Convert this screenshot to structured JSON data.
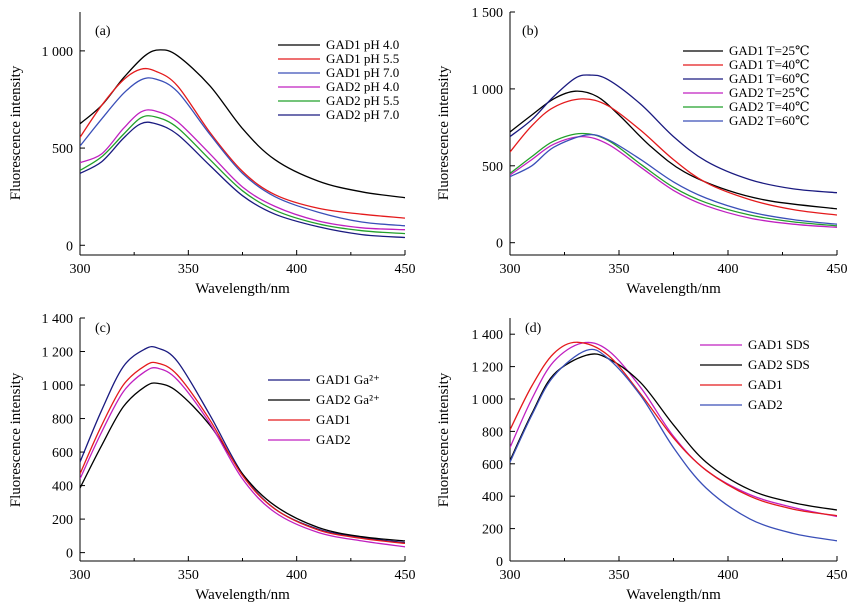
{
  "chart_data": [
    {
      "type": "line",
      "panel_label": "(a)",
      "xlabel": "Wavelength/nm",
      "ylabel": "Fluorescence intensity",
      "xlim": [
        300,
        450
      ],
      "ylim": [
        -50,
        1200
      ],
      "xticks": [
        300,
        350,
        400,
        450
      ],
      "xtick_labels": [
        "300",
        "350",
        "400",
        "450"
      ],
      "yticks": [
        0,
        500,
        1000
      ],
      "ytick_labels": [
        "0",
        "500",
        "1 000"
      ],
      "grid": false,
      "legend": "top-right",
      "series": [
        {
          "name": "GAD1 pH 4.0",
          "color": "#000000",
          "x": [
            300,
            310,
            320,
            330,
            337,
            345,
            360,
            375,
            390,
            410,
            430,
            450
          ],
          "y": [
            625,
            720,
            860,
            975,
            1005,
            975,
            820,
            600,
            440,
            330,
            275,
            245
          ]
        },
        {
          "name": "GAD1 pH 5.5",
          "color": "#e41a1c",
          "x": [
            300,
            310,
            320,
            328,
            335,
            345,
            360,
            375,
            390,
            410,
            430,
            450
          ],
          "y": [
            555,
            720,
            850,
            905,
            895,
            820,
            580,
            380,
            260,
            190,
            160,
            140
          ]
        },
        {
          "name": "GAD1 pH 7.0",
          "color": "#3a4fb8",
          "x": [
            300,
            310,
            320,
            328,
            335,
            345,
            360,
            375,
            390,
            410,
            430,
            450
          ],
          "y": [
            510,
            650,
            780,
            850,
            855,
            790,
            570,
            370,
            250,
            170,
            120,
            100
          ]
        },
        {
          "name": "GAD2 pH 4.0",
          "color": "#c020c0",
          "x": [
            300,
            310,
            320,
            328,
            335,
            345,
            360,
            375,
            390,
            410,
            430,
            450
          ],
          "y": [
            425,
            470,
            600,
            685,
            690,
            635,
            470,
            300,
            200,
            125,
            90,
            80
          ]
        },
        {
          "name": "GAD2 pH 5.5",
          "color": "#22a02a",
          "x": [
            300,
            310,
            320,
            328,
            335,
            345,
            360,
            375,
            390,
            410,
            430,
            450
          ],
          "y": [
            385,
            455,
            570,
            655,
            660,
            605,
            440,
            280,
            180,
            110,
            75,
            60
          ]
        },
        {
          "name": "GAD2 pH 7.0",
          "color": "#1a1a80",
          "x": [
            300,
            310,
            320,
            328,
            335,
            345,
            360,
            375,
            390,
            410,
            430,
            450
          ],
          "y": [
            370,
            430,
            550,
            625,
            625,
            570,
            410,
            255,
            160,
            95,
            55,
            40
          ]
        }
      ]
    },
    {
      "type": "line",
      "panel_label": "(b)",
      "xlabel": "Wavelength/nm",
      "ylabel": "Fluorescence intensity",
      "xlim": [
        300,
        450
      ],
      "ylim": [
        -80,
        1500
      ],
      "xticks": [
        300,
        350,
        400,
        450
      ],
      "xtick_labels": [
        "300",
        "350",
        "400",
        "450"
      ],
      "yticks": [
        0,
        500,
        1000,
        1500
      ],
      "ytick_labels": [
        "0",
        "500",
        "1 000",
        "1 500"
      ],
      "grid": false,
      "legend": "top-right",
      "series": [
        {
          "name": "GAD1 T=25℃",
          "color": "#000000",
          "x": [
            300,
            310,
            320,
            330,
            340,
            350,
            365,
            380,
            400,
            420,
            450
          ],
          "y": [
            720,
            830,
            935,
            985,
            950,
            830,
            620,
            460,
            340,
            270,
            220
          ]
        },
        {
          "name": "GAD1 T=40℃",
          "color": "#e41a1c",
          "x": [
            300,
            310,
            320,
            333,
            345,
            360,
            375,
            390,
            410,
            430,
            450
          ],
          "y": [
            590,
            760,
            880,
            935,
            890,
            730,
            540,
            390,
            280,
            215,
            180
          ]
        },
        {
          "name": "GAD1 T=60℃",
          "color": "#1a1a80",
          "x": [
            300,
            310,
            320,
            330,
            337,
            345,
            360,
            375,
            390,
            410,
            430,
            450
          ],
          "y": [
            690,
            800,
            950,
            1070,
            1090,
            1060,
            900,
            690,
            530,
            410,
            350,
            325
          ]
        },
        {
          "name": "GAD2 T=25℃",
          "color": "#c020c0",
          "x": [
            300,
            310,
            320,
            333,
            345,
            360,
            375,
            390,
            410,
            430,
            450
          ],
          "y": [
            440,
            540,
            640,
            690,
            640,
            490,
            340,
            240,
            160,
            120,
            100
          ]
        },
        {
          "name": "GAD2 T=40℃",
          "color": "#22a02a",
          "x": [
            300,
            310,
            320,
            333,
            345,
            360,
            375,
            390,
            410,
            430,
            450
          ],
          "y": [
            450,
            560,
            660,
            710,
            665,
            510,
            360,
            260,
            180,
            135,
            110
          ]
        },
        {
          "name": "GAD2 T=60℃",
          "color": "#3a4fb8",
          "x": [
            300,
            310,
            320,
            335,
            345,
            360,
            375,
            390,
            410,
            430,
            450
          ],
          "y": [
            430,
            500,
            620,
            700,
            670,
            540,
            395,
            290,
            200,
            150,
            120
          ]
        }
      ]
    },
    {
      "type": "line",
      "panel_label": "(c)",
      "xlabel": "Wavelength/nm",
      "ylabel": "Fluorescence intensity",
      "xlim": [
        300,
        450
      ],
      "ylim": [
        -50,
        1400
      ],
      "xticks": [
        300,
        350,
        400,
        450
      ],
      "xtick_labels": [
        "300",
        "350",
        "400",
        "450"
      ],
      "yticks": [
        0,
        200,
        400,
        600,
        800,
        1000,
        1200,
        1400
      ],
      "ytick_labels": [
        "0",
        "200",
        "400",
        "600",
        "800",
        "1 000",
        "1 200",
        "1 400"
      ],
      "grid": false,
      "legend": "middle-right",
      "series": [
        {
          "name": "GAD1 Ga²⁺",
          "color": "#1a1a80",
          "x": [
            300,
            310,
            320,
            330,
            336,
            345,
            360,
            375,
            390,
            410,
            430,
            450
          ],
          "y": [
            540,
            850,
            1110,
            1215,
            1220,
            1140,
            820,
            470,
            260,
            140,
            90,
            60
          ]
        },
        {
          "name": "GAD2 Ga²⁺",
          "color": "#000000",
          "x": [
            300,
            310,
            320,
            330,
            336,
            345,
            360,
            375,
            390,
            410,
            430,
            450
          ],
          "y": [
            385,
            640,
            870,
            990,
            1010,
            960,
            760,
            470,
            280,
            150,
            95,
            70
          ]
        },
        {
          "name": "GAD1",
          "color": "#e41a1c",
          "x": [
            300,
            310,
            320,
            330,
            336,
            345,
            360,
            375,
            390,
            410,
            430,
            450
          ],
          "y": [
            470,
            760,
            1000,
            1115,
            1130,
            1060,
            790,
            460,
            260,
            135,
            85,
            55
          ]
        },
        {
          "name": "GAD2",
          "color": "#c020c0",
          "x": [
            300,
            310,
            320,
            330,
            336,
            345,
            360,
            375,
            390,
            410,
            430,
            450
          ],
          "y": [
            440,
            720,
            960,
            1080,
            1100,
            1030,
            770,
            440,
            240,
            120,
            70,
            35
          ]
        }
      ]
    },
    {
      "type": "line",
      "panel_label": "(d)",
      "xlabel": "Wavelength/nm",
      "ylabel": "Fluorescence intensity",
      "xlim": [
        300,
        450
      ],
      "ylim": [
        0,
        1500
      ],
      "xticks": [
        300,
        350,
        400,
        450
      ],
      "xtick_labels": [
        "300",
        "350",
        "400",
        "450"
      ],
      "yticks": [
        0,
        200,
        400,
        600,
        800,
        1000,
        1200,
        1400
      ],
      "ytick_labels": [
        "0",
        "200",
        "400",
        "600",
        "800",
        "1 000",
        "1 200",
        "1 400"
      ],
      "grid": false,
      "legend": "top-right",
      "series": [
        {
          "name": "GAD1 SDS",
          "color": "#c020c0",
          "x": [
            300,
            310,
            320,
            333,
            345,
            360,
            375,
            390,
            410,
            430,
            450
          ],
          "y": [
            700,
            1000,
            1230,
            1345,
            1300,
            1070,
            770,
            560,
            410,
            330,
            275
          ]
        },
        {
          "name": "GAD2 SDS",
          "color": "#000000",
          "x": [
            300,
            310,
            320,
            335,
            345,
            360,
            375,
            390,
            410,
            430,
            450
          ],
          "y": [
            620,
            910,
            1150,
            1270,
            1250,
            1100,
            840,
            610,
            440,
            360,
            315
          ]
        },
        {
          "name": "GAD1",
          "color": "#e41a1c",
          "x": [
            300,
            310,
            320,
            331,
            345,
            360,
            375,
            390,
            410,
            430,
            450
          ],
          "y": [
            810,
            1080,
            1280,
            1350,
            1270,
            1030,
            760,
            560,
            400,
            320,
            280
          ]
        },
        {
          "name": "GAD2",
          "color": "#3a4fb8",
          "x": [
            300,
            310,
            320,
            335,
            345,
            360,
            375,
            390,
            410,
            430,
            450
          ],
          "y": [
            610,
            900,
            1140,
            1300,
            1250,
            1020,
            700,
            450,
            260,
            170,
            125
          ]
        }
      ]
    }
  ]
}
